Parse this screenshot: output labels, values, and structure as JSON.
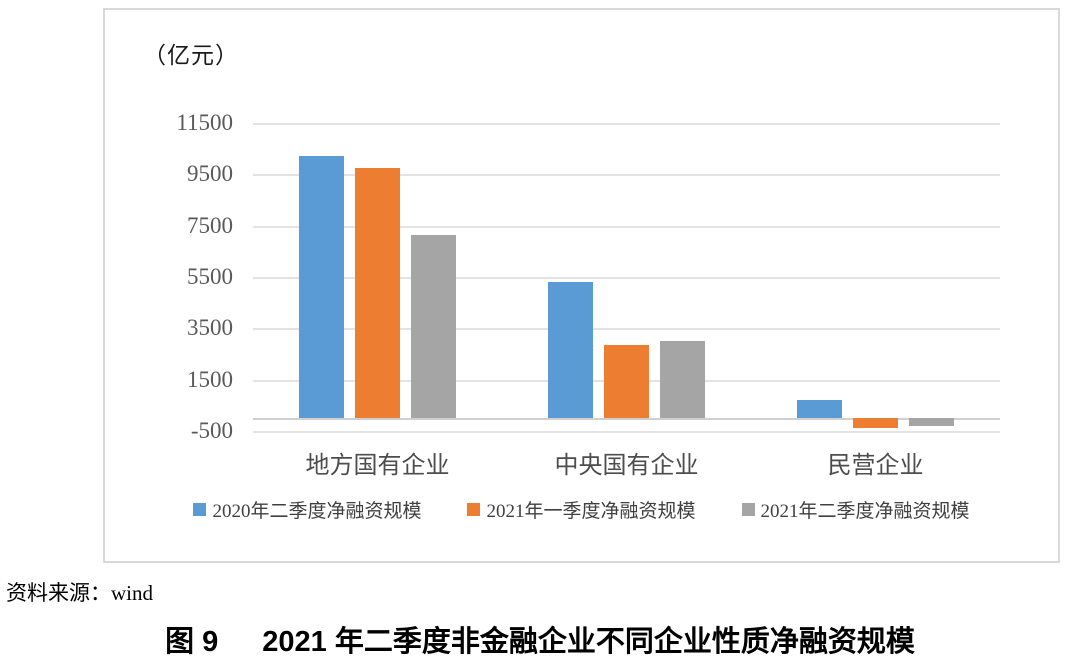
{
  "page": {
    "background": "#ffffff"
  },
  "chart_data": {
    "type": "bar",
    "unit_label": "（亿元）",
    "categories": [
      "地方国有企业",
      "中央国有企业",
      "民营企业"
    ],
    "series": [
      {
        "name": "2020年二季度净融资规模",
        "color": "#5B9BD5",
        "values": [
          10200,
          5300,
          700
        ]
      },
      {
        "name": "2021年一季度净融资规模",
        "color": "#ED7D31",
        "values": [
          9750,
          2850,
          -400
        ]
      },
      {
        "name": "2021年二季度净融资规模",
        "color": "#A5A5A5",
        "values": [
          7150,
          3000,
          -300
        ]
      }
    ],
    "yticks": [
      11500,
      9500,
      7500,
      5500,
      3500,
      1500,
      -500
    ],
    "ylim": [
      -500,
      11500
    ],
    "grid": true,
    "gridline_color": "#e3e3e3",
    "tick_label_color": "#595959",
    "legend_position": "bottom"
  },
  "footer": {
    "source_label": "资料来源：",
    "source_value": "wind",
    "figure_label": "图 9",
    "figure_title": "2021 年二季度非金融企业不同企业性质净融资规模"
  }
}
